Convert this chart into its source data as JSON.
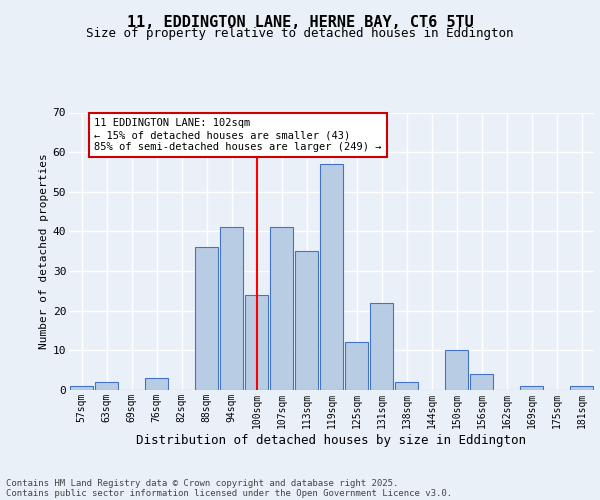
{
  "title_line1": "11, EDDINGTON LANE, HERNE BAY, CT6 5TU",
  "title_line2": "Size of property relative to detached houses in Eddington",
  "xlabel": "Distribution of detached houses by size in Eddington",
  "ylabel": "Number of detached properties",
  "categories": [
    "57sqm",
    "63sqm",
    "69sqm",
    "76sqm",
    "82sqm",
    "88sqm",
    "94sqm",
    "100sqm",
    "107sqm",
    "113sqm",
    "119sqm",
    "125sqm",
    "131sqm",
    "138sqm",
    "144sqm",
    "150sqm",
    "156sqm",
    "162sqm",
    "169sqm",
    "175sqm",
    "181sqm"
  ],
  "values": [
    1,
    2,
    0,
    3,
    0,
    36,
    41,
    24,
    41,
    35,
    57,
    12,
    22,
    2,
    0,
    10,
    4,
    0,
    1,
    0,
    1
  ],
  "bar_color": "#b8cce4",
  "bar_edge_color": "#4472c4",
  "red_line_x": 7,
  "annotation_title": "11 EDDINGTON LANE: 102sqm",
  "annotation_line1": "← 15% of detached houses are smaller (43)",
  "annotation_line2": "85% of semi-detached houses are larger (249) →",
  "ylim": [
    0,
    70
  ],
  "yticks": [
    0,
    10,
    20,
    30,
    40,
    50,
    60,
    70
  ],
  "footer_line1": "Contains HM Land Registry data © Crown copyright and database right 2025.",
  "footer_line2": "Contains public sector information licensed under the Open Government Licence v3.0.",
  "background_color": "#eaf0f8",
  "plot_bg_color": "#eaf0f8",
  "grid_color": "#ffffff",
  "annotation_box_color": "#ffffff",
  "annotation_box_edge_color": "#cc0000",
  "title1_fontsize": 11,
  "title2_fontsize": 9,
  "ylabel_fontsize": 8,
  "xlabel_fontsize": 9,
  "tick_fontsize": 7,
  "footer_fontsize": 6.5
}
